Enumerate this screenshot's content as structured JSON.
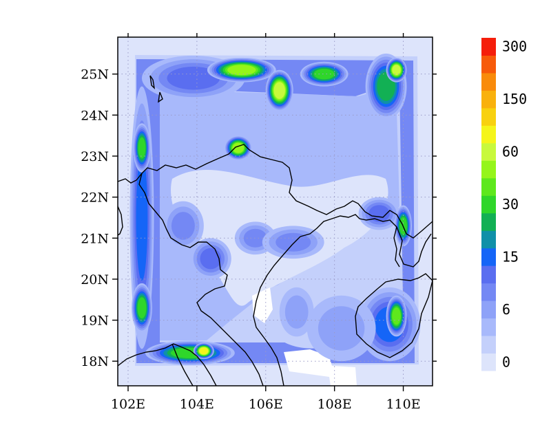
{
  "chart_data": {
    "type": "heatmap",
    "title": "",
    "xlabel": "",
    "ylabel": "",
    "projection": "lat-lon map",
    "xlim": [
      101.7,
      110.85
    ],
    "ylim": [
      17.4,
      25.9
    ],
    "x_ticks": [
      {
        "value": 102,
        "label": "102E"
      },
      {
        "value": 104,
        "label": "104E"
      },
      {
        "value": 106,
        "label": "106E"
      },
      {
        "value": 108,
        "label": "108E"
      },
      {
        "value": 110,
        "label": "110E"
      }
    ],
    "y_ticks": [
      {
        "value": 18,
        "label": "18N"
      },
      {
        "value": 19,
        "label": "19N"
      },
      {
        "value": 20,
        "label": "20N"
      },
      {
        "value": 21,
        "label": "21N"
      },
      {
        "value": 22,
        "label": "22N"
      },
      {
        "value": 23,
        "label": "23N"
      },
      {
        "value": 24,
        "label": "24N"
      },
      {
        "value": 25,
        "label": "25N"
      }
    ],
    "grid": "dotted",
    "contour_levels": [
      0,
      1,
      3,
      6,
      9,
      12,
      15,
      20,
      25,
      30,
      40,
      50,
      60,
      80,
      100,
      150,
      200,
      250,
      300
    ],
    "colorbar": {
      "colors": [
        "#dde4fb",
        "#c4d0fb",
        "#a8b9fb",
        "#8ea2f8",
        "#7488f4",
        "#5a6ef0",
        "#1565f7",
        "#1090a8",
        "#12b054",
        "#2fd62a",
        "#5ee81d",
        "#95f51a",
        "#c8f93c",
        "#f5f51a",
        "#f8d10f",
        "#f9b10d",
        "#f98b0b",
        "#f75a0a",
        "#f51e0b"
      ],
      "labels": [
        {
          "index": 0,
          "text": "0"
        },
        {
          "index": 3,
          "text": "6"
        },
        {
          "index": 6,
          "text": "15"
        },
        {
          "index": 9,
          "text": "30"
        },
        {
          "index": 12,
          "text": "60"
        },
        {
          "index": 15,
          "text": "150"
        },
        {
          "index": 18,
          "text": "300"
        }
      ]
    },
    "field": {
      "description_levels": "contour level index per region",
      "background_level": 1,
      "regions": [
        {
          "lon": 103.9,
          "lat": 24.9,
          "rx": 1.5,
          "ry": 0.55,
          "level": 5
        },
        {
          "lon": 105.3,
          "lat": 25.1,
          "rx": 1.0,
          "ry": 0.3,
          "level": 11
        },
        {
          "lon": 106.4,
          "lat": 24.6,
          "rx": 0.4,
          "ry": 0.5,
          "level": 12
        },
        {
          "lon": 107.7,
          "lat": 25.0,
          "rx": 0.7,
          "ry": 0.3,
          "level": 9
        },
        {
          "lon": 109.5,
          "lat": 24.7,
          "rx": 0.6,
          "ry": 0.8,
          "level": 8
        },
        {
          "lon": 109.8,
          "lat": 25.1,
          "rx": 0.3,
          "ry": 0.3,
          "level": 12
        },
        {
          "lon": 102.4,
          "lat": 21.5,
          "rx": 0.35,
          "ry": 3.2,
          "level": 6
        },
        {
          "lon": 102.4,
          "lat": 23.2,
          "rx": 0.25,
          "ry": 0.6,
          "level": 9
        },
        {
          "lon": 102.4,
          "lat": 19.3,
          "rx": 0.3,
          "ry": 0.6,
          "level": 9
        },
        {
          "lon": 103.8,
          "lat": 18.2,
          "rx": 1.3,
          "ry": 0.3,
          "level": 9
        },
        {
          "lon": 104.2,
          "lat": 18.25,
          "rx": 0.3,
          "ry": 0.2,
          "level": 13
        },
        {
          "lon": 105.2,
          "lat": 23.2,
          "rx": 0.4,
          "ry": 0.3,
          "level": 11
        },
        {
          "lon": 104.4,
          "lat": 20.5,
          "rx": 0.6,
          "ry": 0.5,
          "level": 5
        },
        {
          "lon": 103.6,
          "lat": 21.3,
          "rx": 0.6,
          "ry": 0.6,
          "level": 4
        },
        {
          "lon": 105.7,
          "lat": 21.0,
          "rx": 0.6,
          "ry": 0.4,
          "level": 4
        },
        {
          "lon": 106.8,
          "lat": 20.9,
          "rx": 0.9,
          "ry": 0.4,
          "level": 4
        },
        {
          "lon": 109.3,
          "lat": 21.6,
          "rx": 0.6,
          "ry": 0.4,
          "level": 5
        },
        {
          "lon": 110.0,
          "lat": 21.3,
          "rx": 0.25,
          "ry": 0.5,
          "level": 9
        },
        {
          "lon": 109.6,
          "lat": 18.9,
          "rx": 0.9,
          "ry": 0.9,
          "level": 6
        },
        {
          "lon": 109.8,
          "lat": 19.1,
          "rx": 0.3,
          "ry": 0.5,
          "level": 10
        },
        {
          "lon": 108.2,
          "lat": 18.8,
          "rx": 1.0,
          "ry": 0.8,
          "level": 3
        },
        {
          "lon": 106.9,
          "lat": 19.2,
          "rx": 0.5,
          "ry": 0.6,
          "level": 3
        }
      ]
    }
  }
}
